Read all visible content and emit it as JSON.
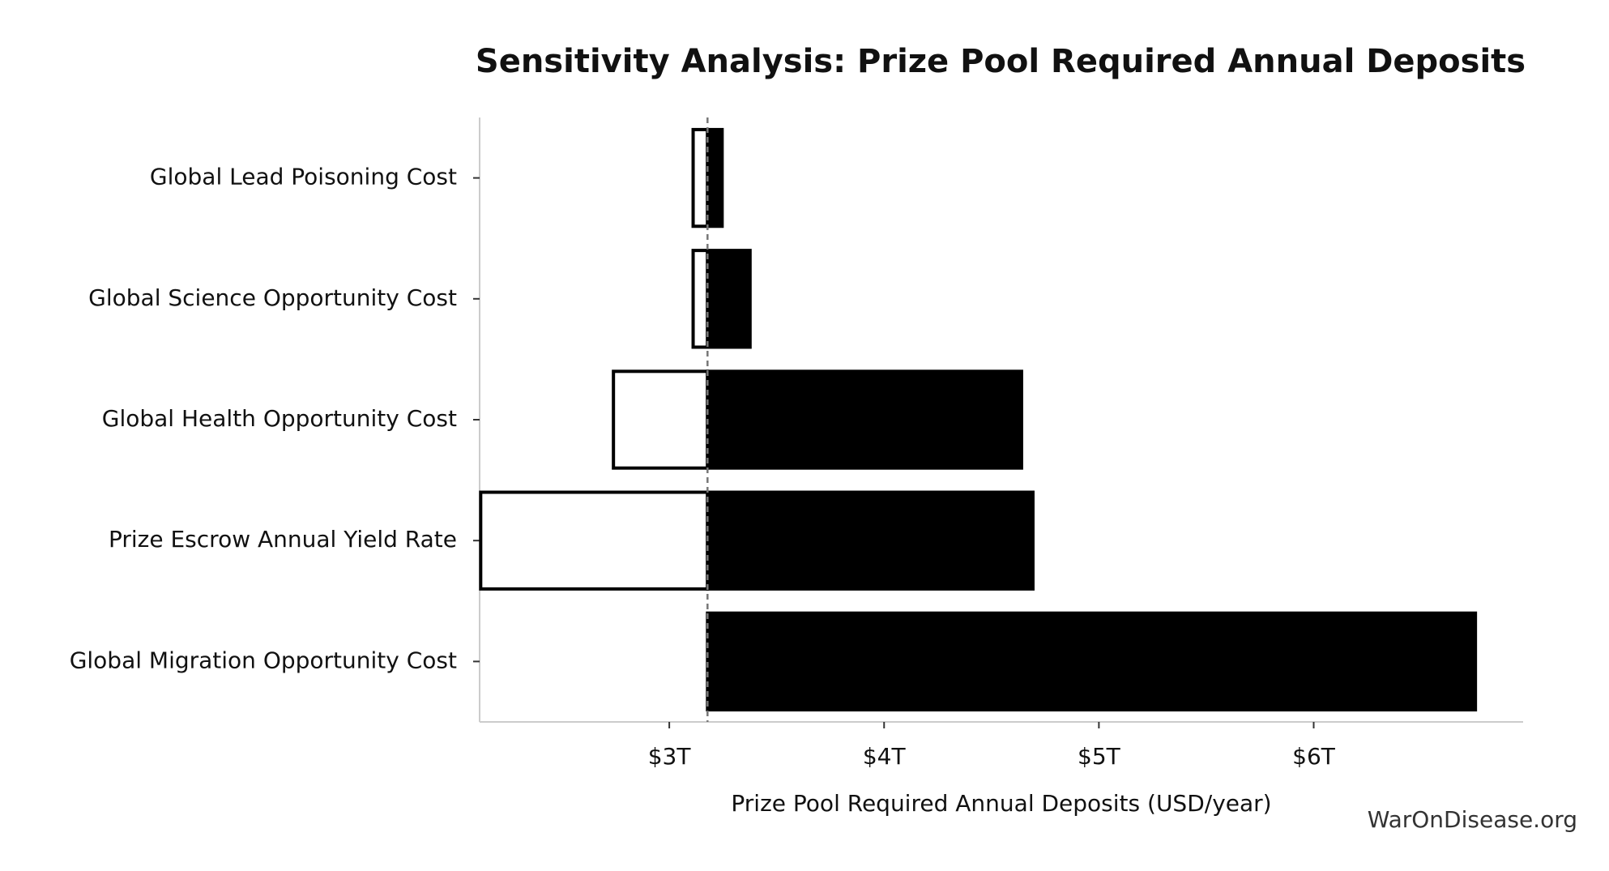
{
  "chart_data": {
    "type": "tornado",
    "title": "Sensitivity Analysis: Prize Pool Required Annual Deposits",
    "xlabel": "Prize Pool Required Annual Deposits (USD/year)",
    "watermark": "WarOnDisease.org",
    "categories": [
      "Global Lead Poisoning Cost",
      "Global Science Opportunity Cost",
      "Global Health Opportunity Cost",
      "Prize Escrow Annual Yield Rate",
      "Global Migration Opportunity Cost"
    ],
    "baseline": 3178000000000,
    "series": [
      {
        "color": "#ffffff",
        "edgecolor": "#000000",
        "values": [
          3111000000000,
          3111000000000,
          2740000000000,
          2122000000000,
          3178000000000
        ]
      },
      {
        "color": "#000000",
        "edgecolor": "#000000",
        "values": [
          3246000000000,
          3376000000000,
          4640000000000,
          4693000000000,
          6753000000000
        ]
      }
    ],
    "xlim": [
      2117000000000,
      6975000000000
    ],
    "xticks": [
      {
        "value": 3000000000000,
        "label": "$3T"
      },
      {
        "value": 4000000000000,
        "label": "$4T"
      },
      {
        "value": 5000000000000,
        "label": "$5T"
      },
      {
        "value": 6000000000000,
        "label": "$6T"
      }
    ]
  }
}
